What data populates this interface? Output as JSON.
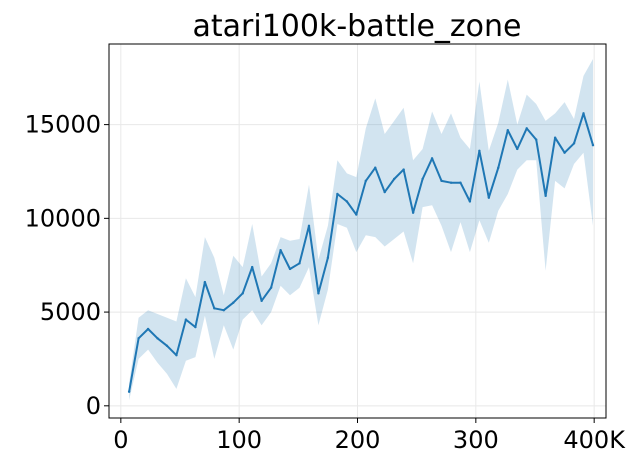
{
  "chart_data": {
    "type": "line",
    "title": "atari100k-battle_zone",
    "xlabel": "",
    "ylabel": "",
    "xlim": [
      -10,
      410
    ],
    "ylim": [
      -650,
      19300
    ],
    "x_ticks": [
      0,
      100,
      200,
      300,
      400
    ],
    "x_tick_labels": [
      "0",
      "100",
      "200",
      "300",
      "400K"
    ],
    "y_ticks": [
      0,
      5000,
      10000,
      15000
    ],
    "y_tick_labels": [
      "0",
      "5000",
      "10000",
      "15000"
    ],
    "grid": true,
    "legend": "none",
    "line_color": "#1f77b4",
    "band_color": "#1f77b4",
    "band_opacity": 0.2,
    "series": [
      {
        "x": [
          7,
          15,
          23,
          31,
          39,
          47,
          55,
          63,
          71,
          79,
          87,
          95,
          103,
          111,
          119,
          127,
          135,
          143,
          151,
          159,
          167,
          175,
          183,
          191,
          199,
          207,
          215,
          223,
          231,
          239,
          247,
          255,
          263,
          271,
          279,
          287,
          295,
          303,
          311,
          319,
          327,
          335,
          343,
          351,
          359,
          367,
          375,
          383,
          391,
          399
        ],
        "values": [
          750,
          3600,
          4100,
          3600,
          3200,
          2700,
          4600,
          4200,
          6600,
          5200,
          5100,
          5500,
          6000,
          7400,
          5600,
          6300,
          8300,
          7300,
          7600,
          9600,
          6000,
          7900,
          11300,
          10900,
          10200,
          12000,
          12700,
          11400,
          12100,
          12600,
          10300,
          12100,
          13200,
          12000,
          11900,
          11900,
          10900,
          13600,
          11100,
          12700,
          14700,
          13700,
          14800,
          14200,
          11200,
          14300,
          13500,
          14000,
          15600,
          13900
        ],
        "lower": [
          300,
          2500,
          3000,
          2300,
          1700,
          900,
          2400,
          2600,
          4800,
          2500,
          4300,
          3000,
          4600,
          5100,
          4300,
          5000,
          6400,
          5900,
          6300,
          7400,
          4300,
          6200,
          9700,
          9500,
          8200,
          9100,
          9000,
          8500,
          8900,
          9300,
          7600,
          10600,
          10700,
          9600,
          8200,
          9800,
          8200,
          9900,
          8700,
          10400,
          11300,
          12600,
          13100,
          13100,
          7200,
          12000,
          11600,
          12900,
          13500,
          9600
        ],
        "upper": [
          1200,
          4700,
          5100,
          4900,
          4700,
          4500,
          6800,
          5800,
          9000,
          7900,
          5900,
          8000,
          7400,
          9700,
          6900,
          7600,
          9000,
          8800,
          8900,
          11800,
          7800,
          9600,
          13100,
          12400,
          12200,
          14800,
          16400,
          14500,
          15200,
          15900,
          13100,
          13700,
          15700,
          14500,
          15600,
          14300,
          13700,
          17300,
          13600,
          15100,
          17400,
          15000,
          16600,
          16100,
          15200,
          15600,
          16200,
          15300,
          17600,
          18500
        ]
      }
    ]
  }
}
